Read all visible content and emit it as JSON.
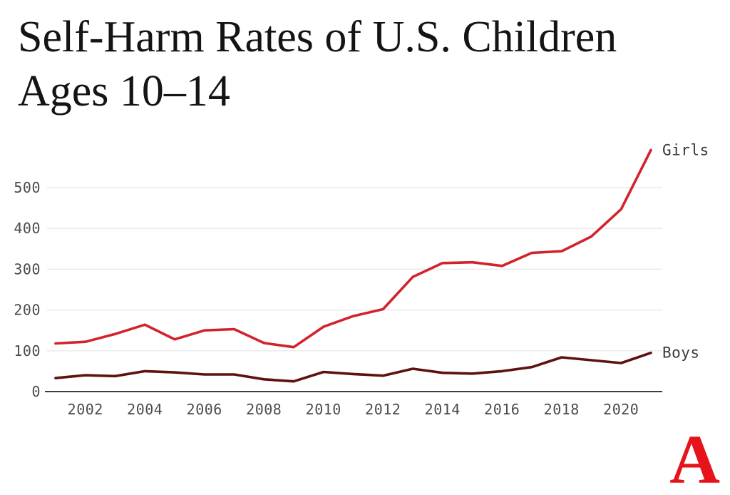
{
  "page": {
    "title_lines": [
      "Self-Harm Rates of U.S. Children",
      "Ages 10–14"
    ],
    "logo_letter": "A",
    "colors": {
      "girls_line": "#d2232a",
      "boys_line": "#5e1210",
      "gridline": "#e5e5e5",
      "axis": "#3d3d3d",
      "tick_label": "#4b4b4b",
      "series_label": "#3a3a3a",
      "logo_red": "#e7131a",
      "title_text": "#141414"
    }
  },
  "chart_data": {
    "type": "line",
    "title": "Self-Harm Rates of U.S. Children Ages 10–14",
    "xlabel": "",
    "ylabel": "",
    "x": [
      2001,
      2002,
      2003,
      2004,
      2005,
      2006,
      2007,
      2008,
      2009,
      2010,
      2011,
      2012,
      2013,
      2014,
      2015,
      2016,
      2017,
      2018,
      2019,
      2020,
      2021
    ],
    "series": [
      {
        "name": "Girls",
        "color": "#d2232a",
        "values": [
          118,
          122,
          141,
          164,
          128,
          150,
          153,
          119,
          109,
          159,
          185,
          202,
          281,
          315,
          317,
          308,
          340,
          344,
          380,
          447,
          592
        ]
      },
      {
        "name": "Boys",
        "color": "#5e1210",
        "values": [
          33,
          40,
          38,
          50,
          47,
          42,
          42,
          30,
          25,
          48,
          43,
          39,
          56,
          46,
          44,
          50,
          60,
          84,
          77,
          70,
          95
        ]
      }
    ],
    "xticks": [
      "2002",
      "2004",
      "2006",
      "2008",
      "2010",
      "2012",
      "2014",
      "2016",
      "2018",
      "2020"
    ],
    "yticks": [
      0,
      100,
      200,
      300,
      400,
      500
    ],
    "xlim": [
      2001,
      2021
    ],
    "ylim": [
      0,
      600
    ],
    "grid": true,
    "legend_position": "line-end-labels"
  }
}
